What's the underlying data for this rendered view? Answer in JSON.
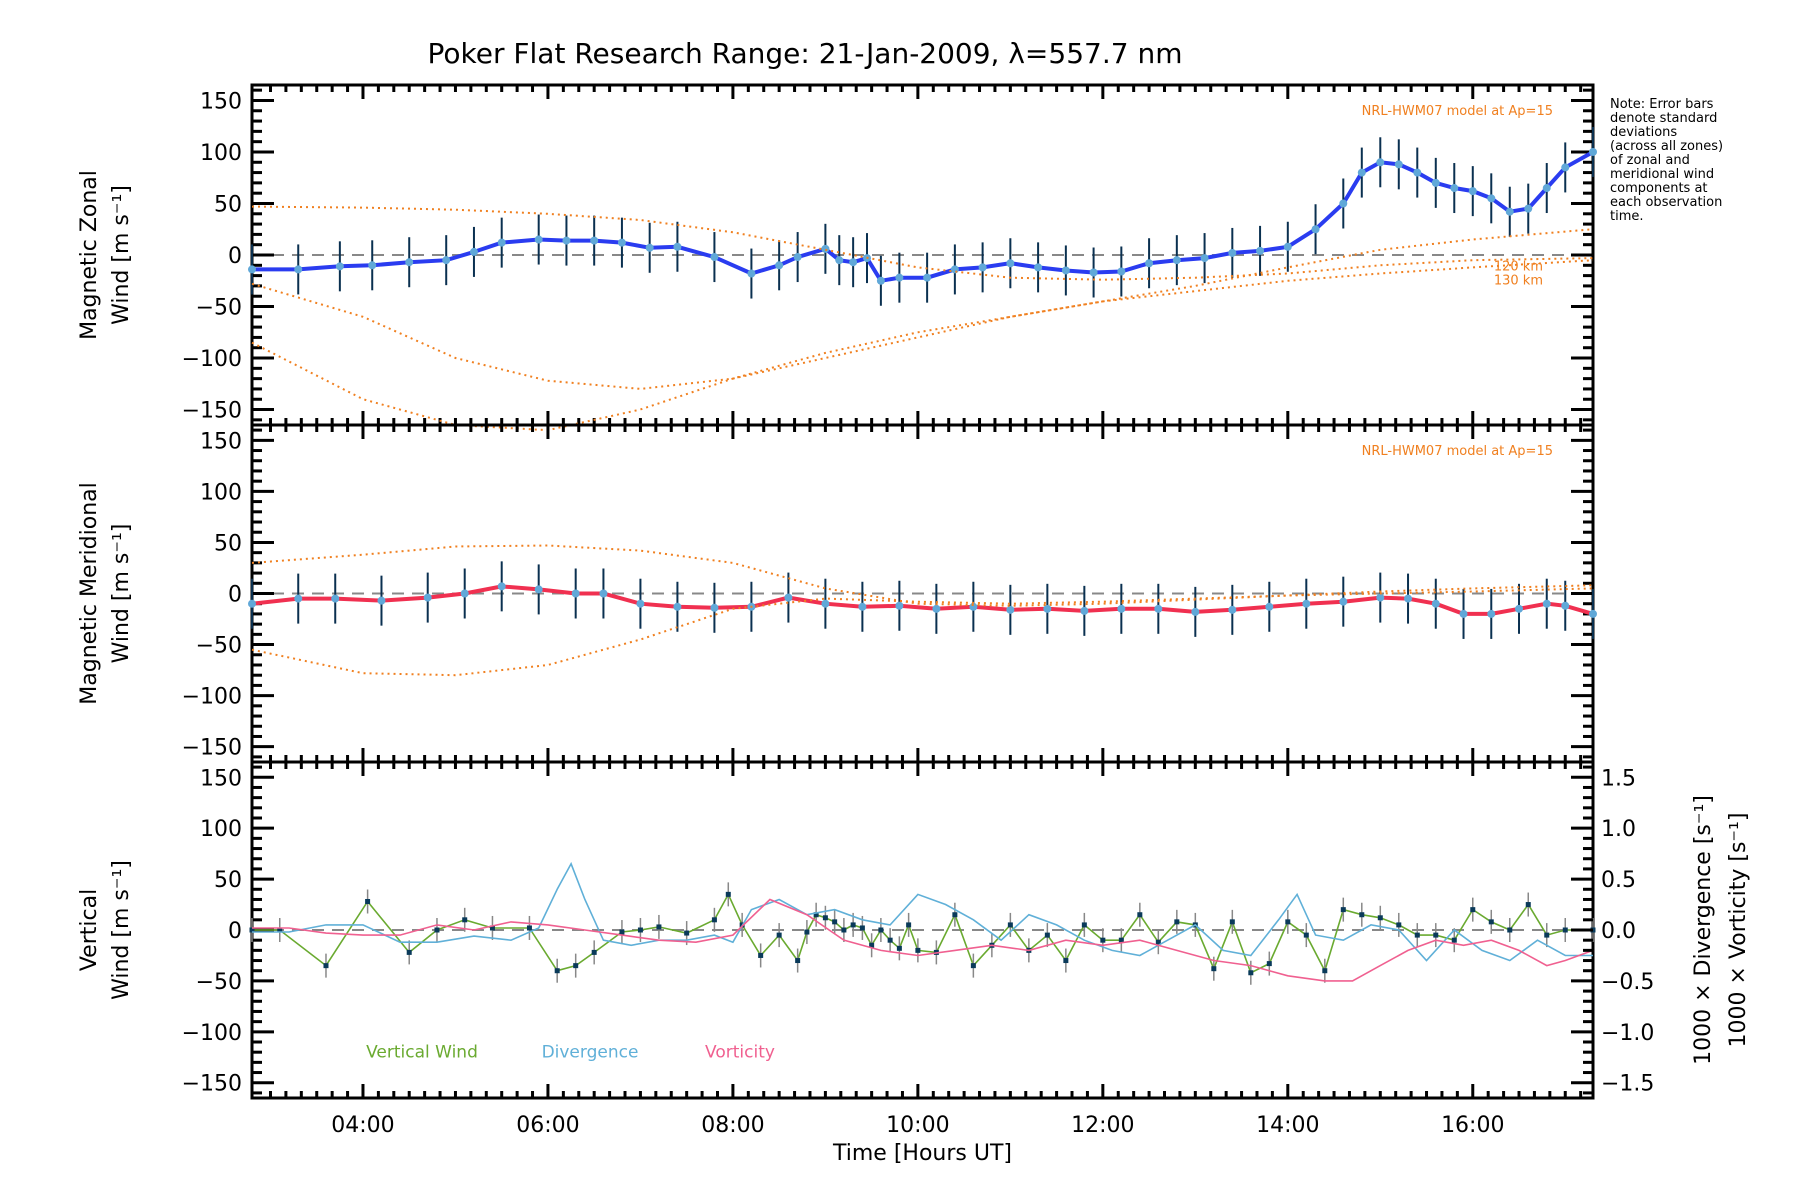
{
  "chart_data": [
    {
      "type": "line",
      "panel": "zonal",
      "title": "Poker Flat Research Range: 21-Jan-2009, λ=557.7 nm",
      "ylabel_line1": "Magnetic Zonal",
      "ylabel_line2": "Wind [m s⁻¹]",
      "ylim": [
        -165,
        165
      ],
      "yticks": [
        -150,
        -100,
        -50,
        0,
        50,
        100,
        150
      ],
      "xlim": [
        2.8,
        17.3
      ],
      "grid": false,
      "annotation": "NRL-HWM07 model at Ap=15",
      "model_labels": [
        "120 km",
        "130 km"
      ],
      "series": [
        {
          "name": "Mean zonal wind",
          "color": "#2a3cf0",
          "x": [
            2.8,
            3.3,
            3.75,
            4.1,
            4.5,
            4.9,
            5.2,
            5.5,
            5.9,
            6.2,
            6.5,
            6.8,
            7.1,
            7.4,
            7.8,
            8.2,
            8.5,
            8.7,
            9.0,
            9.15,
            9.3,
            9.45,
            9.6,
            9.8,
            10.1,
            10.4,
            10.7,
            11.0,
            11.3,
            11.6,
            11.9,
            12.2,
            12.5,
            12.8,
            13.1,
            13.4,
            13.7,
            14.0,
            14.3,
            14.6,
            14.8,
            15.0,
            15.2,
            15.4,
            15.6,
            15.8,
            16.0,
            16.2,
            16.4,
            16.6,
            16.8,
            17.0,
            17.3
          ],
          "values": [
            -14,
            -14,
            -11,
            -10,
            -7,
            -5,
            3,
            12,
            15,
            14,
            14,
            12,
            7,
            8,
            -2,
            -18,
            -10,
            -2,
            6,
            -5,
            -7,
            -3,
            -25,
            -22,
            -22,
            -14,
            -12,
            -8,
            -12,
            -15,
            -17,
            -16,
            -8,
            -5,
            -3,
            2,
            4,
            8,
            25,
            50,
            80,
            90,
            88,
            80,
            70,
            65,
            62,
            55,
            42,
            45,
            65,
            85,
            100
          ]
        },
        {
          "name": "HWM07 model 120 km (upper)",
          "color": "#f08020",
          "style": "dotted",
          "x": [
            2.8,
            4,
            5,
            6,
            7,
            8,
            9,
            10,
            11,
            12,
            13,
            14,
            15,
            16,
            17.3
          ],
          "values": [
            47,
            46,
            44,
            40,
            34,
            22,
            5,
            -12,
            -22,
            -24,
            -22,
            -18,
            -10,
            -5,
            -3
          ]
        },
        {
          "name": "HWM07 model 130 km (upper)",
          "color": "#f08020",
          "style": "dotted",
          "x": [
            2.8,
            4,
            5,
            6,
            7,
            8,
            9,
            10,
            11,
            12,
            13,
            14,
            15,
            16,
            17.3
          ],
          "values": [
            -28,
            -60,
            -100,
            -122,
            -130,
            -120,
            -100,
            -80,
            -60,
            -45,
            -35,
            -25,
            -18,
            -12,
            -5
          ]
        },
        {
          "name": "HWM07 model (lower)",
          "color": "#f08020",
          "style": "dotted",
          "x": [
            2.8,
            4,
            5,
            6,
            7,
            8,
            9,
            10,
            11,
            12,
            13,
            14,
            15,
            16,
            17.3
          ],
          "values": [
            -85,
            -140,
            -165,
            -170,
            -150,
            -120,
            -95,
            -75,
            -60,
            -45,
            -30,
            -12,
            5,
            15,
            25
          ]
        }
      ]
    },
    {
      "type": "line",
      "panel": "meridional",
      "ylabel_line1": "Magnetic Meridional",
      "ylabel_line2": "Wind [m s⁻¹]",
      "ylim": [
        -165,
        165
      ],
      "yticks": [
        -150,
        -100,
        -50,
        0,
        50,
        100,
        150
      ],
      "xlim": [
        2.8,
        17.3
      ],
      "grid": false,
      "annotation": "NRL-HWM07 model at Ap=15",
      "series": [
        {
          "name": "Mean meridional wind",
          "color": "#f03050",
          "x": [
            2.8,
            3.3,
            3.7,
            4.2,
            4.7,
            5.1,
            5.5,
            5.9,
            6.3,
            6.6,
            7.0,
            7.4,
            7.8,
            8.2,
            8.6,
            9.0,
            9.4,
            9.8,
            10.2,
            10.6,
            11.0,
            11.4,
            11.8,
            12.2,
            12.6,
            13.0,
            13.4,
            13.8,
            14.2,
            14.6,
            15.0,
            15.3,
            15.6,
            15.9,
            16.2,
            16.5,
            16.8,
            17.0,
            17.3
          ],
          "values": [
            -10,
            -5,
            -5,
            -7,
            -4,
            0,
            7,
            4,
            0,
            0,
            -10,
            -13,
            -14,
            -13,
            -4,
            -10,
            -13,
            -12,
            -15,
            -13,
            -16,
            -15,
            -17,
            -15,
            -15,
            -18,
            -16,
            -13,
            -10,
            -8,
            -4,
            -5,
            -10,
            -20,
            -20,
            -15,
            -10,
            -12,
            -20
          ]
        },
        {
          "name": "HWM07 model (upper)",
          "color": "#f08020",
          "style": "dotted",
          "x": [
            2.8,
            4,
            5,
            6,
            7,
            8,
            9,
            10,
            11,
            12,
            13,
            14,
            15,
            16,
            17.3
          ],
          "values": [
            30,
            38,
            46,
            47,
            42,
            30,
            5,
            -10,
            -12,
            -10,
            -6,
            -2,
            2,
            5,
            8
          ]
        },
        {
          "name": "HWM07 model (lower)",
          "color": "#f08020",
          "style": "dotted",
          "x": [
            2.8,
            4,
            5,
            6,
            7,
            8,
            9,
            10,
            11,
            12,
            13,
            14,
            15,
            16,
            17.3
          ],
          "values": [
            -55,
            -78,
            -80,
            -70,
            -45,
            -15,
            -5,
            -8,
            -10,
            -8,
            -5,
            -2,
            0,
            2,
            5
          ]
        }
      ]
    },
    {
      "type": "line",
      "panel": "vertical",
      "ylabel_line1": "Vertical",
      "ylabel_line2": "Wind [m s⁻¹]",
      "ylim": [
        -165,
        165
      ],
      "yticks": [
        -150,
        -100,
        -50,
        0,
        50,
        100,
        150
      ],
      "y2lim": [
        -1.65,
        1.65
      ],
      "y2ticks": [
        -1.5,
        -1.0,
        -0.5,
        0.0,
        0.5,
        1.0,
        1.5
      ],
      "y2ticklabels": [
        "−1.5",
        "−1.0",
        "−0.5",
        "0.0",
        "0.5",
        "1.0",
        "1.5"
      ],
      "y2label_divergence": "1000 × Divergence [s⁻¹]",
      "y2label_vorticity": "1000 × Vorticity [s⁻¹]",
      "xlim": [
        2.8,
        17.3
      ],
      "xticks": [
        4,
        6,
        8,
        10,
        12,
        14,
        16
      ],
      "xticklabels": [
        "04:00",
        "06:00",
        "08:00",
        "10:00",
        "12:00",
        "14:00",
        "16:00"
      ],
      "xlabel": "Time [Hours UT]",
      "grid": false,
      "legend": [
        "Vertical Wind",
        "Divergence",
        "Vorticity"
      ],
      "legend_placement": "bottom-left",
      "series": [
        {
          "name": "Vertical Wind",
          "color": "#6aaa30",
          "axis": "left",
          "x": [
            2.8,
            3.1,
            3.6,
            4.05,
            4.5,
            4.8,
            5.1,
            5.4,
            5.8,
            6.1,
            6.3,
            6.5,
            6.8,
            7.0,
            7.2,
            7.5,
            7.8,
            7.95,
            8.1,
            8.3,
            8.5,
            8.7,
            8.8,
            8.9,
            9.0,
            9.1,
            9.2,
            9.3,
            9.4,
            9.5,
            9.6,
            9.7,
            9.8,
            9.9,
            10.0,
            10.2,
            10.4,
            10.6,
            10.8,
            11.0,
            11.2,
            11.4,
            11.6,
            11.8,
            12.0,
            12.2,
            12.4,
            12.6,
            12.8,
            13.0,
            13.2,
            13.4,
            13.6,
            13.8,
            14.0,
            14.2,
            14.4,
            14.6,
            14.8,
            15.0,
            15.2,
            15.4,
            15.6,
            15.8,
            16.0,
            16.2,
            16.4,
            16.6,
            16.8,
            17.0,
            17.3
          ],
          "values": [
            0,
            0,
            -35,
            28,
            -22,
            0,
            10,
            2,
            2,
            -40,
            -35,
            -22,
            -2,
            0,
            3,
            -3,
            10,
            35,
            5,
            -25,
            -5,
            -30,
            -2,
            15,
            12,
            8,
            0,
            5,
            2,
            -15,
            0,
            -10,
            -18,
            5,
            -20,
            -22,
            15,
            -35,
            -15,
            5,
            -20,
            -5,
            -30,
            5,
            -10,
            -10,
            15,
            -12,
            8,
            5,
            -38,
            8,
            -42,
            -33,
            8,
            -5,
            -40,
            20,
            15,
            12,
            5,
            -5,
            -5,
            -10,
            20,
            8,
            0,
            25,
            -5,
            0,
            0
          ]
        },
        {
          "name": "Divergence",
          "color": "#60b0d8",
          "axis": "right",
          "x": [
            2.8,
            3.2,
            3.6,
            4.0,
            4.4,
            4.8,
            5.2,
            5.6,
            5.9,
            6.1,
            6.25,
            6.4,
            6.6,
            6.9,
            7.2,
            7.5,
            7.8,
            8.0,
            8.2,
            8.5,
            8.8,
            9.1,
            9.4,
            9.7,
            10.0,
            10.3,
            10.6,
            10.9,
            11.2,
            11.5,
            11.8,
            12.1,
            12.4,
            12.7,
            13.0,
            13.3,
            13.6,
            13.9,
            14.1,
            14.3,
            14.6,
            14.9,
            15.2,
            15.5,
            15.8,
            16.1,
            16.4,
            16.7,
            17.0,
            17.3
          ],
          "values": [
            -0.02,
            -0.02,
            0.05,
            0.05,
            -0.12,
            -0.12,
            -0.06,
            -0.1,
            0.02,
            0.4,
            0.65,
            0.3,
            -0.1,
            -0.15,
            -0.1,
            -0.1,
            -0.05,
            -0.12,
            0.2,
            0.3,
            0.15,
            0.2,
            0.1,
            0.05,
            0.35,
            0.25,
            0.1,
            -0.1,
            0.15,
            0.05,
            -0.1,
            -0.2,
            -0.25,
            -0.1,
            0.05,
            -0.2,
            -0.25,
            0.1,
            0.35,
            -0.05,
            -0.1,
            0.05,
            0.0,
            -0.3,
            0.0,
            -0.2,
            -0.3,
            -0.1,
            -0.25,
            -0.25
          ]
        },
        {
          "name": "Vorticity",
          "color": "#f06090",
          "axis": "right",
          "x": [
            2.8,
            3.2,
            3.6,
            4.0,
            4.4,
            4.8,
            5.2,
            5.6,
            6.0,
            6.4,
            6.8,
            7.2,
            7.6,
            8.0,
            8.4,
            8.8,
            9.2,
            9.6,
            10.0,
            10.4,
            10.8,
            11.2,
            11.6,
            12.0,
            12.4,
            12.8,
            13.2,
            13.6,
            14.0,
            14.4,
            14.7,
            15.0,
            15.3,
            15.6,
            15.9,
            16.2,
            16.5,
            16.8,
            17.0,
            17.3
          ],
          "values": [
            0.02,
            0.02,
            -0.03,
            -0.05,
            -0.05,
            0.05,
            0.0,
            0.08,
            0.05,
            0.0,
            -0.05,
            -0.1,
            -0.12,
            -0.05,
            0.3,
            0.15,
            -0.1,
            -0.2,
            -0.25,
            -0.2,
            -0.15,
            -0.2,
            -0.1,
            -0.15,
            -0.1,
            -0.2,
            -0.3,
            -0.35,
            -0.45,
            -0.5,
            -0.5,
            -0.35,
            -0.2,
            -0.1,
            -0.15,
            -0.1,
            -0.2,
            -0.35,
            -0.3,
            -0.2
          ]
        }
      ]
    }
  ],
  "note": {
    "lines": [
      "Note: Error bars",
      "denote standard",
      "deviations",
      "(across all zones)",
      "of zonal and",
      "meridional wind",
      "components at",
      "each observation",
      "time."
    ]
  }
}
